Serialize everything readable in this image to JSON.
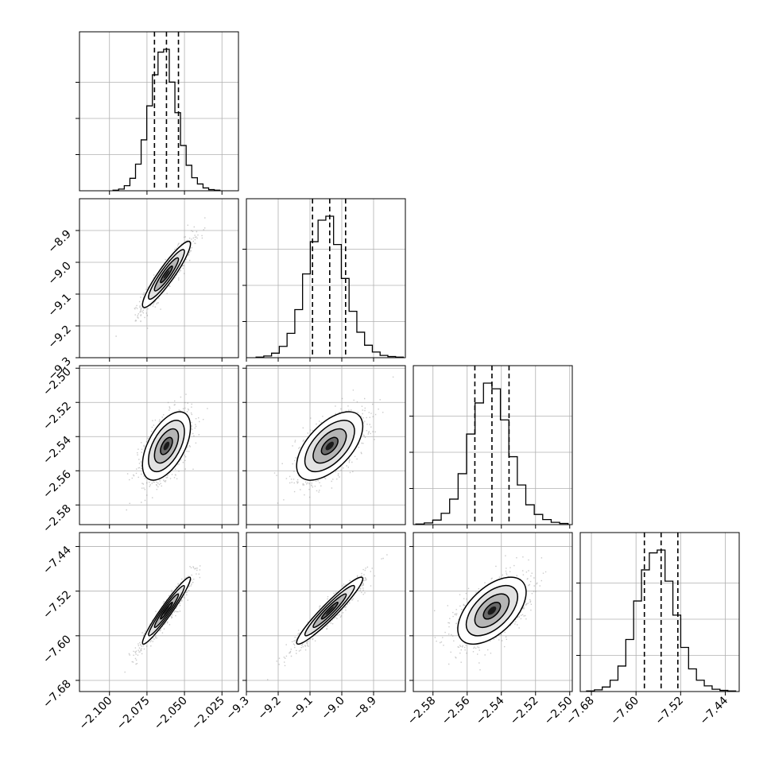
{
  "figure": {
    "type": "corner_plot",
    "background": "#ffffff",
    "grid": true,
    "colors": {
      "line": "#000000",
      "grid": "#b0b0b0",
      "density": "#000000"
    }
  },
  "chart_data": {
    "type": "corner",
    "parameters": [
      {
        "index": 0,
        "median": -2.062,
        "q16": -2.07,
        "q84": -2.054,
        "xlim": [
          -2.12,
          -2.014
        ],
        "ylim": [
          -2.12,
          -2.014
        ],
        "ticks": [
          -2.1,
          -2.075,
          -2.05,
          -2.025
        ],
        "tick_labels": [
          "−2.100",
          "−2.075",
          "−2.050",
          "−2.025"
        ],
        "hist": [
          1,
          3,
          9,
          22,
          47,
          90,
          150,
          205,
          245,
          250,
          192,
          138,
          80,
          45,
          23,
          12,
          5,
          2,
          1
        ]
      },
      {
        "index": 1,
        "median": -9.038,
        "q16": -9.092,
        "q84": -8.988,
        "xlim": [
          -9.3,
          -8.8
        ],
        "ylim": [
          -9.3,
          -8.8
        ],
        "ticks": [
          -9.3,
          -9.2,
          -9.1,
          -9.0,
          -8.9
        ],
        "tick_labels": [
          "−9.3",
          "−9.2",
          "−9.1",
          "−9.0",
          "−8.9"
        ],
        "hist": [
          1,
          3,
          8,
          20,
          43,
          85,
          148,
          205,
          243,
          250,
          200,
          140,
          82,
          45,
          22,
          10,
          4,
          2,
          1
        ]
      },
      {
        "index": 2,
        "median": -2.5455,
        "q16": -2.5555,
        "q84": -2.5355,
        "xlim": [
          -2.5915,
          -2.4985
        ],
        "ylim": [
          -2.5915,
          -2.4985
        ],
        "ticks": [
          -2.58,
          -2.56,
          -2.54,
          -2.52,
          -2.5
        ],
        "tick_labels": [
          "−2.58",
          "−2.56",
          "−2.54",
          "−2.52",
          "−2.50"
        ],
        "hist": [
          1,
          3,
          8,
          20,
          45,
          90,
          160,
          215,
          250,
          240,
          185,
          120,
          70,
          35,
          18,
          9,
          4,
          2
        ]
      },
      {
        "index": 3,
        "median": -7.555,
        "q16": -7.585,
        "q84": -7.525,
        "xlim": [
          -7.7,
          -7.415
        ],
        "ylim": [
          -7.7,
          -7.415
        ],
        "ticks": [
          -7.68,
          -7.6,
          -7.52,
          -7.44
        ],
        "tick_labels": [
          "−7.68",
          "−7.60",
          "−7.52",
          "−7.44"
        ],
        "hist": [
          1,
          3,
          8,
          20,
          45,
          92,
          160,
          215,
          245,
          250,
          195,
          135,
          78,
          40,
          20,
          10,
          4,
          2,
          1
        ]
      }
    ],
    "pairs": [
      {
        "row": 1,
        "col": 0,
        "correlation": 0.92
      },
      {
        "row": 2,
        "col": 0,
        "correlation": 0.55
      },
      {
        "row": 2,
        "col": 1,
        "correlation": 0.58
      },
      {
        "row": 3,
        "col": 0,
        "correlation": 0.96
      },
      {
        "row": 3,
        "col": 1,
        "correlation": 0.95
      },
      {
        "row": 3,
        "col": 2,
        "correlation": 0.55
      }
    ],
    "contour_levels_sigma": [
      0.5,
      1.0,
      1.5,
      2.0
    ]
  }
}
